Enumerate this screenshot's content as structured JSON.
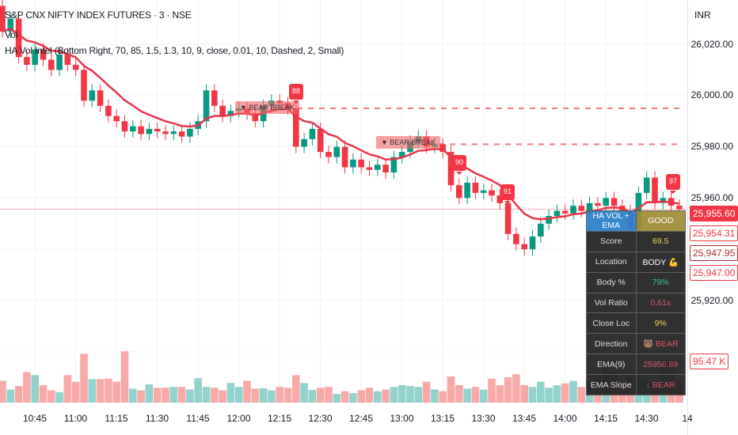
{
  "header": {
    "symbol": "S&P CNX NIFTY INDEX FUTURES · 3 · NSE",
    "vol": "Vol",
    "indicator": "HA Vol Intel (Bottom Right, 70, 85, 1.5, 1.3, 10, 9, close, 0.01, 10, Dashed, 2, Small)"
  },
  "axis": {
    "currency": "INR",
    "ticks": [
      "26,020.00",
      "26,000.00",
      "25,980.00",
      "25,960.00",
      "25,920.00"
    ],
    "tags": [
      "25,955.60",
      "25,954.31",
      "25,947.95",
      "25,947.00",
      "95.47 K"
    ]
  },
  "signals": [
    "88",
    "90",
    "91",
    "97"
  ],
  "breaks": [
    "▼ BEAR BREAK",
    "▼ BEAR BREAK"
  ],
  "table": {
    "rows": [
      [
        "HA VOL + EMA",
        "GOOD"
      ],
      [
        "Score",
        "69.5"
      ],
      [
        "Location",
        "BODY 💪"
      ],
      [
        "Body %",
        "79%"
      ],
      [
        "Vol Ratio",
        "0.61x"
      ],
      [
        "Close Loc",
        "9%"
      ],
      [
        "Direction",
        "🐻 BEAR"
      ],
      [
        "EMA(9)",
        "25956.89"
      ],
      [
        "EMA Slope",
        "↓ BEAR"
      ]
    ],
    "colors": [
      "#ffffff",
      "#f0d040",
      "#ffffff",
      "#22c58a",
      "#e04560",
      "#f0d040",
      "#e04560",
      "#e04560",
      "#e04560"
    ]
  },
  "colors": {
    "up": "#089981",
    "down": "#f23645",
    "ema": "#e8374a",
    "vol_up": "#92d2cc",
    "vol_down": "#f7a9a7"
  },
  "chart_data": {
    "type": "candlestick",
    "x_labels": [
      "10:45",
      "11:00",
      "11:15",
      "11:30",
      "11:45",
      "12:00",
      "12:15",
      "12:30",
      "12:45",
      "13:00",
      "13:15",
      "13:30",
      "13:45",
      "14:00",
      "14:15",
      "14:30",
      "14"
    ],
    "ylim": [
      25900,
      26030
    ],
    "open": [
      26035,
      26025,
      26030,
      26015,
      26012,
      26018,
      26014,
      26010,
      26016,
      26012,
      26010,
      25998,
      26002,
      25996,
      25992,
      25990,
      25986,
      25988,
      25985,
      25987,
      25986,
      25985,
      25986,
      25984,
      25987,
      25990,
      26002,
      25996,
      25992,
      25994,
      25995,
      25993,
      25990,
      25996,
      25998,
      25997,
      25995,
      25980,
      25983,
      25987,
      25978,
      25976,
      25980,
      25972,
      25975,
      25972,
      25971,
      25973,
      25970,
      25976,
      25978,
      25982,
      25984,
      25980,
      25981,
      25978,
      25965,
      25960,
      25966,
      25962,
      25963,
      25961,
      25958,
      25946,
      25942,
      25940,
      25945,
      25950,
      25953,
      25955,
      25954,
      25957,
      25955,
      25958,
      25957,
      25960,
      25957,
      25955,
      25948,
      25962,
      25968,
      25958,
      25960,
      25957
    ],
    "close": [
      26025,
      26030,
      26015,
      26012,
      26018,
      26014,
      26010,
      26016,
      26012,
      26010,
      25998,
      26002,
      25996,
      25992,
      25990,
      25986,
      25988,
      25985,
      25987,
      25986,
      25985,
      25986,
      25984,
      25987,
      25990,
      26002,
      25996,
      25992,
      25994,
      25995,
      25993,
      25990,
      25996,
      25998,
      25997,
      25995,
      25980,
      25983,
      25987,
      25978,
      25976,
      25980,
      25972,
      25975,
      25972,
      25971,
      25973,
      25970,
      25976,
      25978,
      25982,
      25984,
      25980,
      25981,
      25978,
      25965,
      25960,
      25966,
      25962,
      25963,
      25961,
      25958,
      25946,
      25942,
      25940,
      25945,
      25950,
      25953,
      25955,
      25954,
      25957,
      25955,
      25958,
      25957,
      25960,
      25957,
      25955,
      25948,
      25962,
      25968,
      25958,
      25960,
      25957,
      25955.6
    ],
    "volume_k": [
      50,
      30,
      38,
      70,
      63,
      40,
      28,
      24,
      63,
      48,
      112,
      54,
      54,
      55,
      48,
      118,
      32,
      28,
      42,
      34,
      34,
      36,
      36,
      30,
      56,
      36,
      34,
      28,
      45,
      36,
      50,
      32,
      33,
      28,
      36,
      34,
      63,
      45,
      29,
      34,
      36,
      20,
      26,
      22,
      28,
      34,
      26,
      30,
      36,
      40,
      38,
      36,
      48,
      30,
      26,
      60,
      40,
      32,
      36,
      30,
      55,
      40,
      58,
      65,
      40,
      36,
      48,
      34,
      40,
      44,
      50,
      36,
      48,
      60,
      90,
      70,
      40,
      60,
      62,
      55,
      48,
      100,
      95.47,
      50
    ]
  }
}
